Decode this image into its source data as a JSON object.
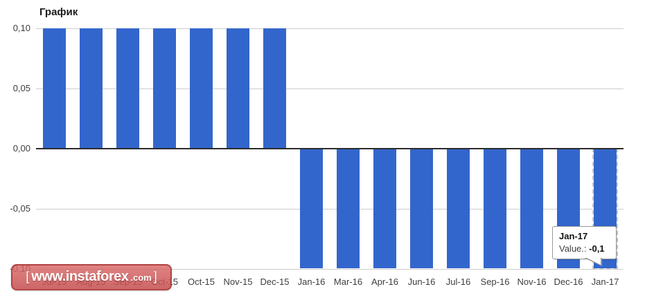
{
  "chart_data": {
    "type": "bar",
    "title": "График",
    "categories": [
      "Jul-15",
      "Aug-15",
      "Sep-15",
      "Oct-15",
      "Oct-15",
      "Nov-15",
      "Dec-15",
      "Jan-16",
      "Mar-16",
      "Apr-16",
      "Jun-16",
      "Jul-16",
      "Sep-16",
      "Nov-16",
      "Dec-16",
      "Jan-17"
    ],
    "values": [
      0.1,
      0.1,
      0.1,
      0.1,
      0.1,
      0.1,
      0.1,
      -0.1,
      -0.1,
      -0.1,
      -0.1,
      -0.1,
      -0.1,
      -0.1,
      -0.1,
      -0.1
    ],
    "y_ticks": [
      {
        "label": "0,10",
        "value": 0.1
      },
      {
        "label": "0,05",
        "value": 0.05
      },
      {
        "label": "0,00",
        "value": 0.0
      },
      {
        "label": "-0,05",
        "value": -0.05
      },
      {
        "label": "-0,10",
        "value": -0.1
      }
    ],
    "ylim": [
      -0.1,
      0.1
    ],
    "xlabel": "",
    "ylabel": "",
    "grid": true,
    "legend_position": "none",
    "bar_color": "#3366cc",
    "selected_index": 15,
    "selected_category": "Jan-17",
    "selected_value": -0.1
  },
  "tooltip": {
    "title": "Jan-17",
    "value_label": "Value.:",
    "value": "-0,1"
  },
  "watermark": {
    "bracket_left": "[",
    "domain": "www.instaforex",
    "tld": ".com",
    "bracket_right": "]"
  },
  "colors": {
    "bar": "#3366cc",
    "gridline": "#cccccc",
    "zero_line": "#2b2b2b",
    "axis_text": "#3d3d3d",
    "watermark_red": "#c94f4f",
    "tooltip_border": "#999999"
  }
}
